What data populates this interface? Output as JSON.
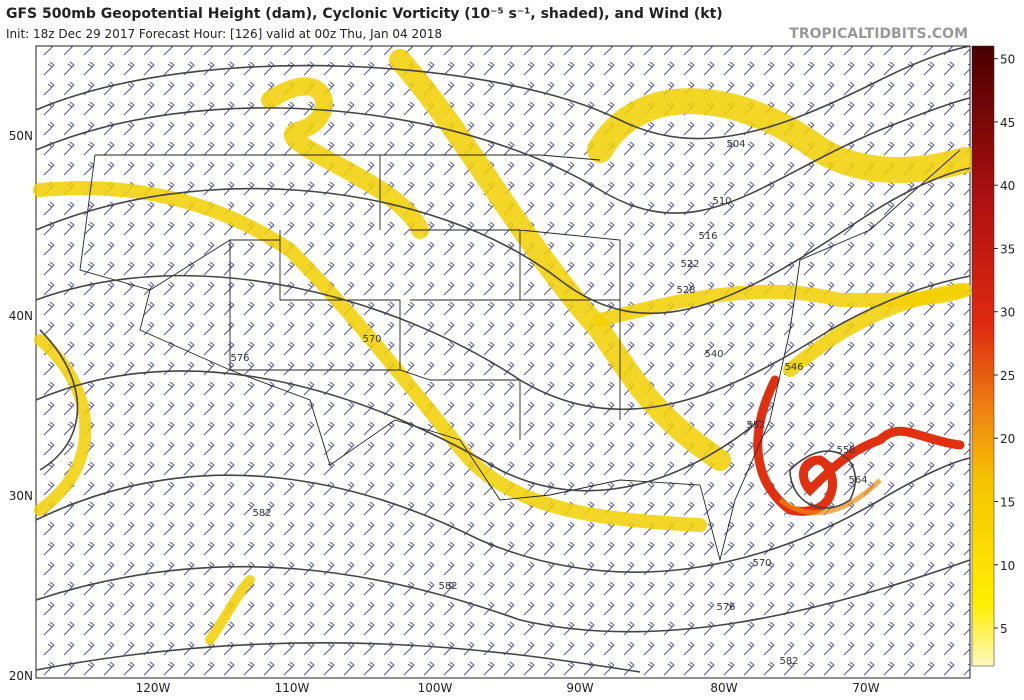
{
  "header": {
    "title": "GFS 500mb Geopotential Height (dam), Cyclonic Vorticity (10⁻⁵ s⁻¹, shaded), and Wind (kt)",
    "subtitle": "Init: 18z Dec 29 2017   Forecast Hour: [126]   valid at 00z Thu, Jan 04 2018",
    "brand": "TROPICALTIDBITS.COM"
  },
  "map": {
    "lat_labels": [
      "50N",
      "40N",
      "30N",
      "20N"
    ],
    "lon_labels": [
      "120W",
      "110W",
      "100W",
      "90W",
      "80W",
      "70W"
    ],
    "contour_labels": [
      504,
      510,
      516,
      522,
      528,
      540,
      546,
      552,
      558,
      564,
      570,
      576,
      582,
      582,
      570,
      576,
      582
    ]
  },
  "colorbar": {
    "range": [
      2,
      51
    ],
    "ticks": [
      5,
      10,
      15,
      20,
      25,
      30,
      35,
      40,
      45,
      50
    ]
  }
}
